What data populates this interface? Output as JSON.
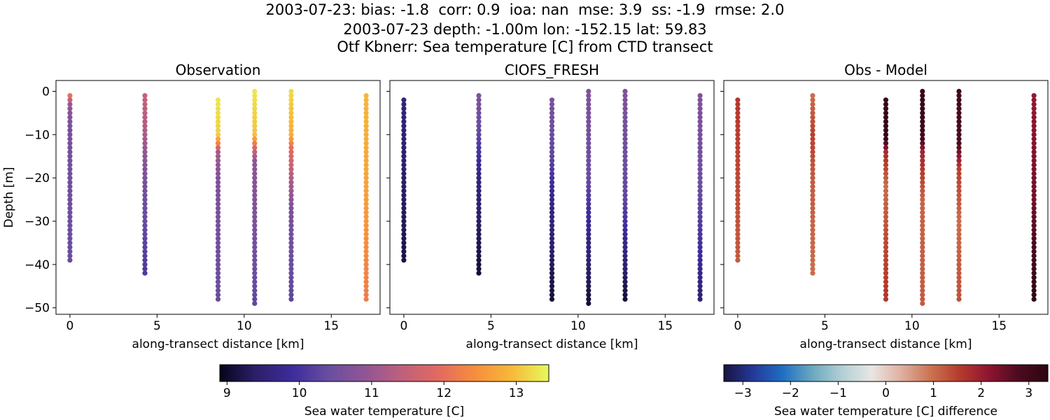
{
  "suptitle": {
    "line1": "2003-07-23: bias: -1.8  corr: 0.9  ioa: nan  mse: 3.9  ss: -1.9  rmse: 2.0",
    "line2": "2003-07-23 depth: -1.00m lon: -152.15 lat: 59.83",
    "line3": "Otf Kbnerr: Sea temperature [C] from CTD transect"
  },
  "chart_data": [
    {
      "type": "scatter",
      "title": "Observation",
      "xlabel": "along-transect distance [km]",
      "ylabel": "Depth [m]",
      "xlim": [
        -0.8,
        17.8
      ],
      "ylim": [
        -51.5,
        2.5
      ],
      "xticks": [
        0,
        5,
        10,
        15
      ],
      "yticks": [
        0,
        -10,
        -20,
        -30,
        -40,
        -50
      ],
      "colorbar": "temperature",
      "profiles": [
        {
          "x": 0.0,
          "top": -1,
          "bottom": -39,
          "values": [
            [
              -1,
              12.0
            ],
            [
              -3,
              11.0
            ],
            [
              -8,
              10.6
            ],
            [
              -39,
              10.4
            ]
          ]
        },
        {
          "x": 4.3,
          "top": -1,
          "bottom": -42,
          "values": [
            [
              -1,
              11.5
            ],
            [
              -10,
              11.2
            ],
            [
              -20,
              10.6
            ],
            [
              -42,
              10.1
            ]
          ]
        },
        {
          "x": 8.5,
          "top": -2,
          "bottom": -48,
          "values": [
            [
              -2,
              13.3
            ],
            [
              -10,
              13.1
            ],
            [
              -12,
              12.3
            ],
            [
              -14,
              11.2
            ],
            [
              -20,
              10.7
            ],
            [
              -48,
              10.4
            ]
          ]
        },
        {
          "x": 10.6,
          "top": 0,
          "bottom": -49,
          "values": [
            [
              0,
              13.3
            ],
            [
              -10,
              13.0
            ],
            [
              -13,
              11.8
            ],
            [
              -16,
              10.9
            ],
            [
              -49,
              10.3
            ]
          ]
        },
        {
          "x": 12.7,
          "top": 0,
          "bottom": -48,
          "values": [
            [
              0,
              13.2
            ],
            [
              -10,
              12.8
            ],
            [
              -13,
              12.0
            ],
            [
              -20,
              11.3
            ],
            [
              -28,
              10.6
            ],
            [
              -48,
              10.3
            ]
          ]
        },
        {
          "x": 17.0,
          "top": -1,
          "bottom": -48,
          "values": [
            [
              -1,
              12.9
            ],
            [
              -20,
              12.7
            ],
            [
              -48,
              12.2
            ]
          ]
        }
      ]
    },
    {
      "type": "scatter",
      "title": "CIOFS_FRESH",
      "xlabel": "along-transect distance [km]",
      "xlim": [
        -0.8,
        17.8
      ],
      "ylim": [
        -51.5,
        2.5
      ],
      "xticks": [
        0,
        5,
        10,
        15
      ],
      "colorbar": "temperature",
      "profiles": [
        {
          "x": 0.0,
          "top": -2,
          "bottom": -39,
          "values": [
            [
              -2,
              9.6
            ],
            [
              -39,
              9.2
            ]
          ]
        },
        {
          "x": 4.3,
          "top": -1,
          "bottom": -42,
          "values": [
            [
              -1,
              10.7
            ],
            [
              -10,
              10.3
            ],
            [
              -20,
              9.6
            ],
            [
              -42,
              9.1
            ]
          ]
        },
        {
          "x": 8.5,
          "top": -2,
          "bottom": -48,
          "values": [
            [
              -2,
              10.6
            ],
            [
              -15,
              10.3
            ],
            [
              -25,
              9.7
            ],
            [
              -48,
              9.1
            ]
          ]
        },
        {
          "x": 10.6,
          "top": 0,
          "bottom": -49,
          "values": [
            [
              0,
              10.7
            ],
            [
              -20,
              10.4
            ],
            [
              -30,
              9.8
            ],
            [
              -49,
              9.1
            ]
          ]
        },
        {
          "x": 12.7,
          "top": 0,
          "bottom": -48,
          "values": [
            [
              0,
              10.7
            ],
            [
              -25,
              10.3
            ],
            [
              -35,
              9.7
            ],
            [
              -48,
              9.1
            ]
          ]
        },
        {
          "x": 17.0,
          "top": -1,
          "bottom": -48,
          "values": [
            [
              -1,
              10.7
            ],
            [
              -20,
              10.5
            ],
            [
              -35,
              10.0
            ],
            [
              -48,
              9.5
            ]
          ]
        }
      ]
    },
    {
      "type": "scatter",
      "title": "Obs - Model",
      "xlabel": "along-transect distance [km]",
      "xlim": [
        -0.8,
        17.8
      ],
      "ylim": [
        -51.5,
        2.5
      ],
      "xticks": [
        0,
        5,
        10,
        15
      ],
      "colorbar": "difference",
      "profiles": [
        {
          "x": 0.0,
          "top": -2,
          "bottom": -39,
          "values": [
            [
              -2,
              1.6
            ],
            [
              -39,
              1.2
            ]
          ]
        },
        {
          "x": 4.3,
          "top": -1,
          "bottom": -42,
          "values": [
            [
              -1,
              1.0
            ],
            [
              -10,
              1.5
            ],
            [
              -20,
              1.2
            ],
            [
              -42,
              1.0
            ]
          ]
        },
        {
          "x": 8.5,
          "top": -2,
          "bottom": -48,
          "values": [
            [
              -2,
              3.2
            ],
            [
              -11,
              3.2
            ],
            [
              -14,
              1.8
            ],
            [
              -22,
              1.0
            ],
            [
              -35,
              1.4
            ],
            [
              -48,
              1.6
            ]
          ]
        },
        {
          "x": 10.6,
          "top": 0,
          "bottom": -49,
          "values": [
            [
              0,
              3.2
            ],
            [
              -11,
              3.0
            ],
            [
              -14,
              1.9
            ],
            [
              -25,
              1.1
            ],
            [
              -49,
              1.2
            ]
          ]
        },
        {
          "x": 12.7,
          "top": 0,
          "bottom": -48,
          "values": [
            [
              0,
              3.0
            ],
            [
              -12,
              2.8
            ],
            [
              -18,
              1.5
            ],
            [
              -30,
              1.0
            ],
            [
              -48,
              1.3
            ]
          ]
        },
        {
          "x": 17.0,
          "top": -1,
          "bottom": -48,
          "values": [
            [
              -1,
              2.1
            ],
            [
              -25,
              2.4
            ],
            [
              -38,
              2.9
            ],
            [
              -48,
              3.3
            ]
          ]
        }
      ]
    }
  ],
  "colorbars": {
    "temperature": {
      "label": "Sea water temperature [C]",
      "min": 8.9,
      "max": 13.45,
      "ticks": [
        9,
        10,
        11,
        12,
        13
      ],
      "colormap": [
        "#03051a",
        "#2e1f6b",
        "#3d2c9b",
        "#6a4ea0",
        "#925594",
        "#c0607c",
        "#e36a5e",
        "#f78e3c",
        "#f6ba3a",
        "#e8f95b"
      ]
    },
    "difference": {
      "label": "Sea water temperature [C] difference",
      "min": -3.4,
      "max": 3.4,
      "ticks": [
        -3,
        -2,
        -1,
        0,
        1,
        2,
        3
      ],
      "tick_labels": [
        "−3",
        "−2",
        "−1",
        "0",
        "1",
        "2",
        "3"
      ],
      "colormap": [
        "#1a1340",
        "#24399a",
        "#1f6fc2",
        "#6aa8c0",
        "#b2cfd4",
        "#e8e6e4",
        "#dfb2a3",
        "#cc7451",
        "#b63b2d",
        "#8e1431",
        "#4c0b1f",
        "#2c0511"
      ]
    }
  }
}
